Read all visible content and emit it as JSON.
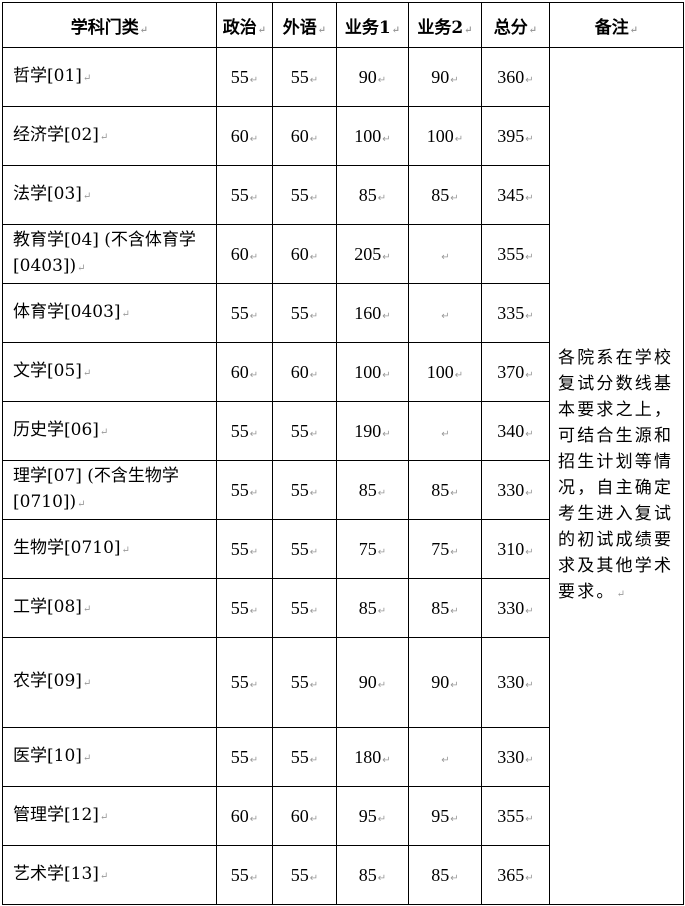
{
  "table": {
    "headers": [
      "学科门类",
      "政治",
      "外语",
      "业务1",
      "业务2",
      "总分",
      "备注"
    ],
    "rows": [
      {
        "name": "哲学[01]",
        "politics": "55",
        "language": "55",
        "subject1": "90",
        "subject2": "90",
        "total": "360"
      },
      {
        "name": "经济学[02]",
        "politics": "60",
        "language": "60",
        "subject1": "100",
        "subject2": "100",
        "total": "395"
      },
      {
        "name": "法学[03]",
        "politics": "55",
        "language": "55",
        "subject1": "85",
        "subject2": "85",
        "total": "345"
      },
      {
        "name": "教育学[04] (不含体育学[0403])",
        "politics": "60",
        "language": "60",
        "subject1": "205",
        "subject2": "",
        "total": "355"
      },
      {
        "name": "体育学[0403]",
        "politics": "55",
        "language": "55",
        "subject1": "160",
        "subject2": "",
        "total": "335"
      },
      {
        "name": "文学[05]",
        "politics": "60",
        "language": "60",
        "subject1": "100",
        "subject2": "100",
        "total": "370"
      },
      {
        "name": "历史学[06]",
        "politics": "55",
        "language": "55",
        "subject1": "190",
        "subject2": "",
        "total": "340"
      },
      {
        "name": "理学[07] (不含生物学[0710])",
        "politics": "55",
        "language": "55",
        "subject1": "85",
        "subject2": "85",
        "total": "330"
      },
      {
        "name": "生物学[0710]",
        "politics": "55",
        "language": "55",
        "subject1": "75",
        "subject2": "75",
        "total": "310"
      },
      {
        "name": "工学[08]",
        "politics": "55",
        "language": "55",
        "subject1": "85",
        "subject2": "85",
        "total": "330"
      },
      {
        "name": "农学[09]",
        "politics": "55",
        "language": "55",
        "subject1": "90",
        "subject2": "90",
        "total": "330"
      },
      {
        "name": "医学[10]",
        "politics": "55",
        "language": "55",
        "subject1": "180",
        "subject2": "",
        "total": "330"
      },
      {
        "name": "管理学[12]",
        "politics": "60",
        "language": "60",
        "subject1": "95",
        "subject2": "95",
        "total": "355"
      },
      {
        "name": "艺术学[13]",
        "politics": "55",
        "language": "55",
        "subject1": "85",
        "subject2": "85",
        "total": "365"
      }
    ],
    "note": "各院系在学校复试分数线基本要求之上，可结合生源和招生计划等情况，自主确定考生进入复试的初试成绩要求及其他学术要求。"
  }
}
